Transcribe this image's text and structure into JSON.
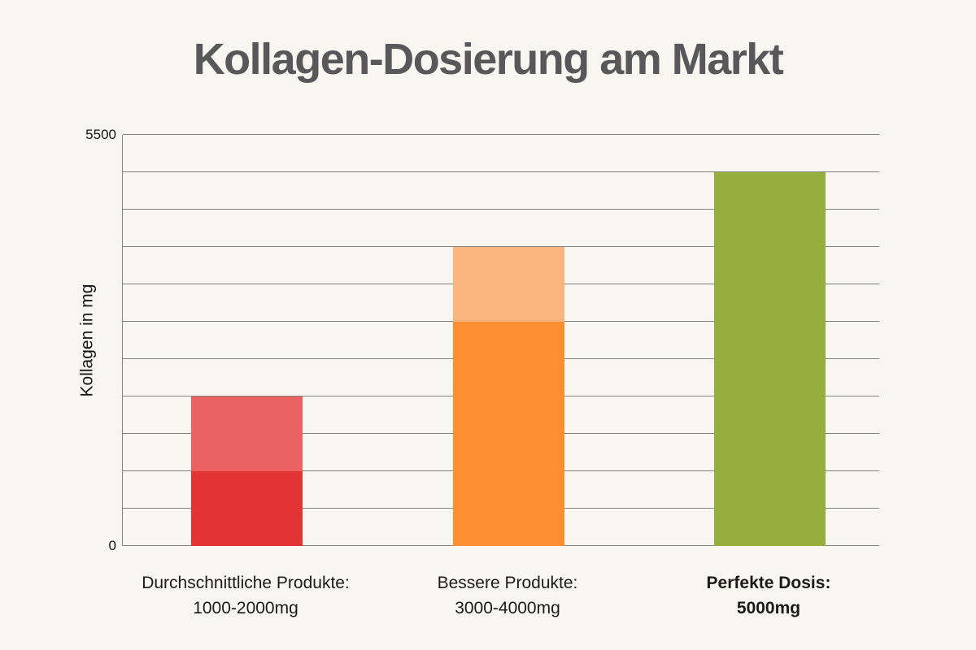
{
  "page": {
    "background_color": "#f8f6f0",
    "title_color": "#58585a",
    "gridline_color": "#85817c",
    "text_color": "#161616"
  },
  "chart_data": {
    "type": "bar",
    "stacked": true,
    "title": "Kollagen-Dosierung am Markt",
    "xlabel": "",
    "ylabel": "Kollagen in mg",
    "ylim": [
      0,
      5500
    ],
    "gridline_step": 500,
    "grid": true,
    "legend": false,
    "ytick_labels": [
      "5500",
      "0"
    ],
    "categories": [
      "Durchschnittliche Produkte: 1000-2000mg",
      "Bessere Produkte: 3000-4000mg",
      "Perfekte Dosis: 5000mg"
    ],
    "bars": [
      {
        "label_line1": "Durchschnittliche Produkte:",
        "label_line2": "1000-2000mg",
        "label_bold": false,
        "segments": [
          {
            "from": 0,
            "to": 1000,
            "color": "#e23434"
          },
          {
            "from": 1000,
            "to": 2000,
            "color": "#ec6161"
          }
        ]
      },
      {
        "label_line1": "Bessere Produkte:",
        "label_line2": "3000-4000mg",
        "label_bold": false,
        "segments": [
          {
            "from": 0,
            "to": 3000,
            "color": "#fd8e31"
          },
          {
            "from": 3000,
            "to": 4000,
            "color": "#fab57e"
          }
        ]
      },
      {
        "label_line1": "Perfekte Dosis:",
        "label_line2": "5000mg",
        "label_bold": true,
        "segments": [
          {
            "from": 0,
            "to": 5000,
            "color": "#96ae3e"
          }
        ]
      }
    ]
  }
}
